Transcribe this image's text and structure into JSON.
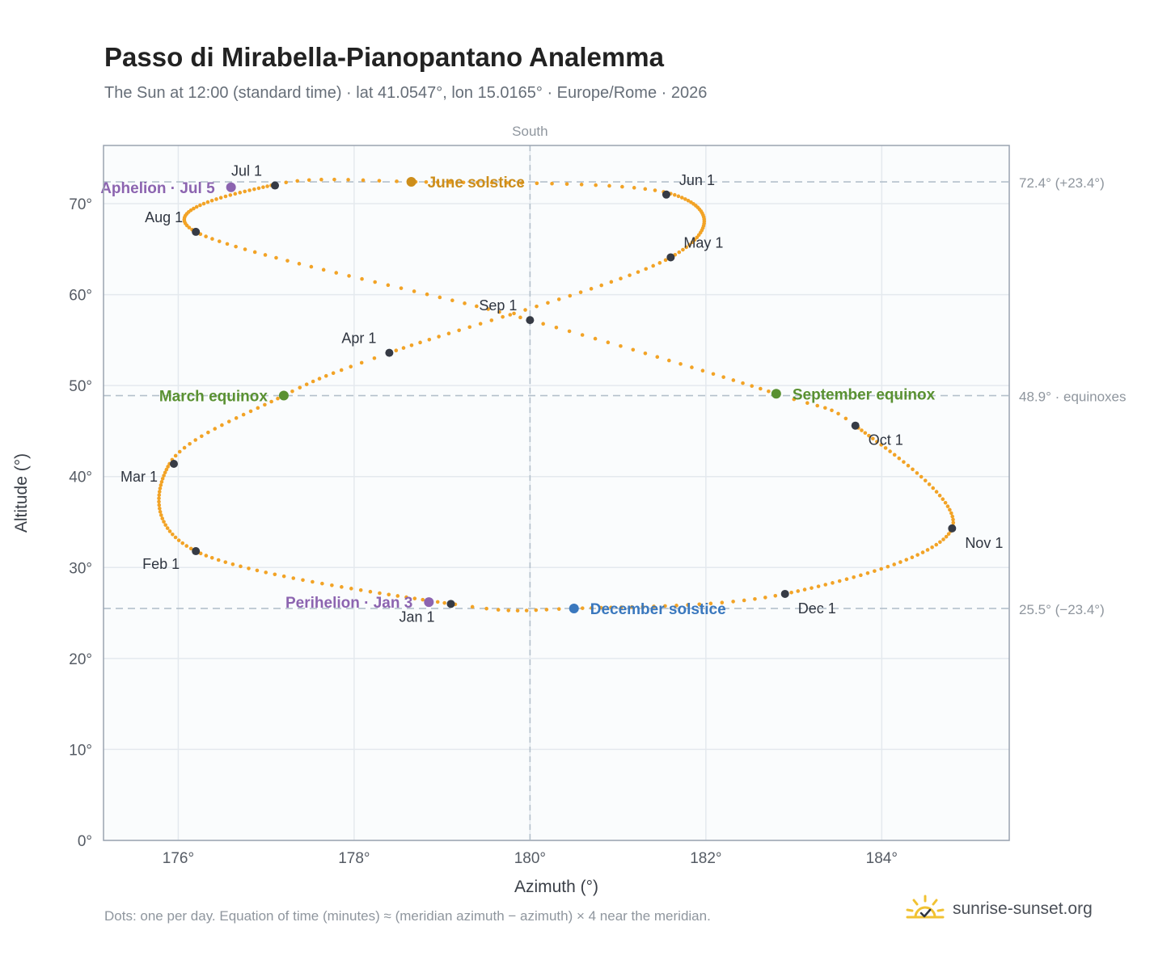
{
  "header": {
    "title": "Passo di Mirabella-Pianopantano Analemma",
    "subtitle": "The Sun at 12:00 (standard time) · lat 41.0547°, lon 15.0165° · Europe/Rome · 2026"
  },
  "footer": {
    "note": "Dots: one per day. Equation of time (minutes) ≈ (meridian azimuth − azimuth) × 4 near the meridian.",
    "brand": "sunrise-sunset.org",
    "brand_icon": "sun-check-icon"
  },
  "colors": {
    "path": "#f2a326",
    "month_dot": "#363b45",
    "solstice_june": "#cd8e1b",
    "solstice_december": "#3a78be",
    "equinox": "#5a9132",
    "apsis": "#8c64b0",
    "plot_bg": "#fafcfd",
    "grid": "#e4e9ee",
    "frame": "#9aa3b0"
  },
  "chart_data": {
    "type": "scatter",
    "title": "Passo di Mirabella-Pianopantano Analemma",
    "xlabel": "Azimuth (°)",
    "ylabel": "Altitude (°)",
    "xlim": [
      175.15,
      185.45
    ],
    "ylim": [
      0,
      76.4
    ],
    "x_ticks": [
      176,
      178,
      180,
      182,
      184
    ],
    "x_tick_labels": [
      "176°",
      "178°",
      "180°",
      "182°",
      "184°"
    ],
    "y_ticks": [
      0,
      10,
      20,
      30,
      40,
      50,
      60,
      70
    ],
    "y_tick_labels": [
      "0°",
      "10°",
      "20°",
      "30°",
      "40°",
      "50°",
      "60°",
      "70°"
    ],
    "grid": true,
    "meridian": {
      "azimuth": 180,
      "label": "South"
    },
    "reference_lines": [
      {
        "altitude": 72.4,
        "label": "72.4° (+23.4°)"
      },
      {
        "altitude": 48.9,
        "label": "48.9° · equinoxes"
      },
      {
        "altitude": 25.5,
        "label": "25.5° (−23.4°)"
      }
    ],
    "series": [
      {
        "name": "",
        "key_points": [
          {
            "day": 1,
            "azimuth": 179.1,
            "altitude": 26.0
          },
          {
            "day": 32,
            "azimuth": 176.2,
            "altitude": 31.8
          },
          {
            "day": 60,
            "azimuth": 175.9,
            "altitude": 41.4
          },
          {
            "day": 79,
            "azimuth": 177.2,
            "altitude": 48.9
          },
          {
            "day": 91,
            "azimuth": 178.4,
            "altitude": 53.6
          },
          {
            "day": 121,
            "azimuth": 181.6,
            "altitude": 64.1
          },
          {
            "day": 152,
            "azimuth": 181.6,
            "altitude": 71.1
          },
          {
            "day": 172,
            "azimuth": 178.7,
            "altitude": 72.4
          },
          {
            "day": 182,
            "azimuth": 177.1,
            "altitude": 72.1
          },
          {
            "day": 213,
            "azimuth": 176.2,
            "altitude": 66.9
          },
          {
            "day": 244,
            "azimuth": 180.0,
            "altitude": 57.2
          },
          {
            "day": 266,
            "azimuth": 182.8,
            "altitude": 49.1
          },
          {
            "day": 274,
            "azimuth": 183.7,
            "altitude": 45.6
          },
          {
            "day": 305,
            "azimuth": 184.8,
            "altitude": 34.3
          },
          {
            "day": 335,
            "azimuth": 182.9,
            "altitude": 27.1
          },
          {
            "day": 355,
            "azimuth": 180.5,
            "altitude": 25.5
          },
          {
            "day": 365,
            "azimuth": 179.15,
            "altitude": 25.95
          }
        ]
      }
    ],
    "month_markers": [
      {
        "label": "Jan 1",
        "azimuth": 179.1,
        "altitude": 26.0,
        "anchor": "below-left"
      },
      {
        "label": "Feb 1",
        "azimuth": 176.2,
        "altitude": 31.8,
        "anchor": "below-left"
      },
      {
        "label": "Mar 1",
        "azimuth": 175.95,
        "altitude": 41.4,
        "anchor": "below-left"
      },
      {
        "label": "Apr 1",
        "azimuth": 178.4,
        "altitude": 53.6,
        "anchor": "above-left"
      },
      {
        "label": "May 1",
        "azimuth": 181.6,
        "altitude": 64.1,
        "anchor": "above-right"
      },
      {
        "label": "Jun 1",
        "azimuth": 181.55,
        "altitude": 71.0,
        "anchor": "above-right"
      },
      {
        "label": "Jul 1",
        "azimuth": 177.1,
        "altitude": 72.0,
        "anchor": "above-left"
      },
      {
        "label": "Aug 1",
        "azimuth": 176.2,
        "altitude": 66.9,
        "anchor": "above-left"
      },
      {
        "label": "Sep 1",
        "azimuth": 180.0,
        "altitude": 57.2,
        "anchor": "above-left"
      },
      {
        "label": "Oct 1",
        "azimuth": 183.7,
        "altitude": 45.6,
        "anchor": "below-right"
      },
      {
        "label": "Nov 1",
        "azimuth": 184.8,
        "altitude": 34.3,
        "anchor": "below-right"
      },
      {
        "label": "Dec 1",
        "azimuth": 182.9,
        "altitude": 27.1,
        "anchor": "below-right"
      }
    ],
    "events": [
      {
        "label": "June solstice",
        "azimuth": 178.65,
        "altitude": 72.4,
        "color": "#cd8e1b",
        "anchor": "right"
      },
      {
        "label": "December solstice",
        "azimuth": 180.5,
        "altitude": 25.5,
        "color": "#3a78be",
        "anchor": "right"
      },
      {
        "label": "March equinox",
        "azimuth": 177.2,
        "altitude": 48.9,
        "color": "#5a9132",
        "anchor": "left"
      },
      {
        "label": "September equinox",
        "azimuth": 182.8,
        "altitude": 49.1,
        "color": "#5a9132",
        "anchor": "right"
      },
      {
        "label": "Aphelion · Jul 5",
        "azimuth": 176.6,
        "altitude": 71.8,
        "color": "#8c64b0",
        "anchor": "left"
      },
      {
        "label": "Perihelion · Jan 3",
        "azimuth": 178.85,
        "altitude": 26.2,
        "color": "#8c64b0",
        "anchor": "left"
      }
    ]
  }
}
